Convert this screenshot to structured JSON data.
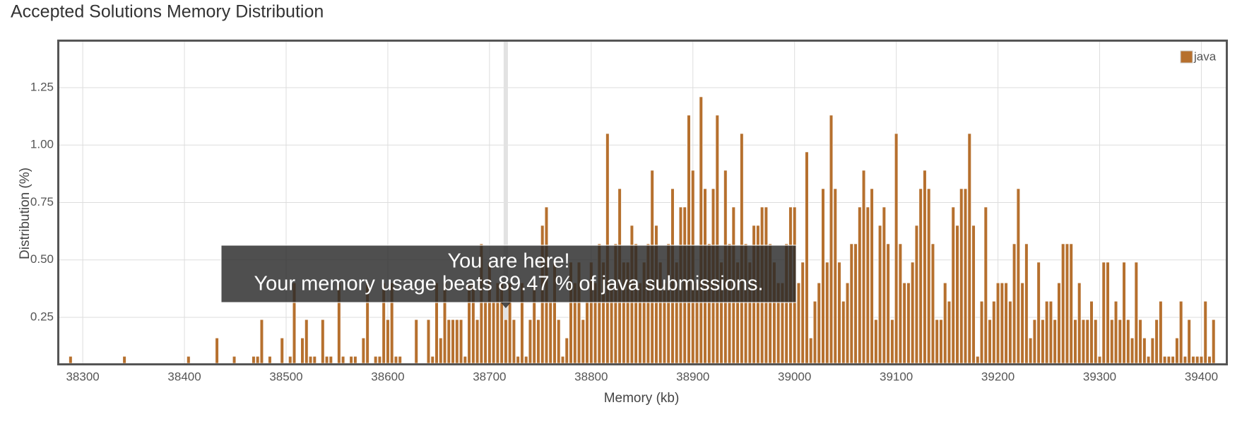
{
  "chart_data": {
    "type": "bar",
    "title": "Accepted Solutions Memory Distribution",
    "x_label": "Memory (kb)",
    "y_label": "Distribution (%)",
    "xlim": [
      38277,
      39424
    ],
    "ylim": [
      0.05,
      1.45
    ],
    "xticks": [
      38300,
      38400,
      38500,
      38600,
      38700,
      38800,
      38900,
      39000,
      39100,
      39200,
      39300,
      39400
    ],
    "yticks": [
      0.25,
      {
        "value": 0.5,
        "label": "0.50"
      },
      0.75,
      {
        "value": 1,
        "label": "1.00"
      },
      1.25
    ],
    "grid": true,
    "legend": "top-right",
    "highlight_x": 38716,
    "annotation": {
      "title": "You are here!",
      "text": "Your memory usage beats 89.47 % of java submissions."
    },
    "x": [
      38288,
      38341,
      38404,
      38432,
      38449,
      38468,
      38472,
      38476,
      38484,
      38496,
      38504,
      38508,
      38516,
      38520,
      38524,
      38528,
      38536,
      38540,
      38544,
      38552,
      38556,
      38564,
      38568,
      38576,
      38580,
      38588,
      38592,
      38596,
      38600,
      38604,
      38608,
      38612,
      38628,
      38640,
      38644,
      38648,
      38652,
      38656,
      38660,
      38664,
      38668,
      38672,
      38676,
      38680,
      38684,
      38688,
      38692,
      38696,
      38700,
      38704,
      38708,
      38712,
      38716,
      38720,
      38724,
      38728,
      38732,
      38736,
      38740,
      38744,
      38748,
      38752,
      38756,
      38760,
      38764,
      38768,
      38772,
      38776,
      38780,
      38784,
      38788,
      38792,
      38796,
      38800,
      38804,
      38808,
      38812,
      38816,
      38820,
      38824,
      38828,
      38832,
      38836,
      38840,
      38844,
      38848,
      38852,
      38856,
      38860,
      38864,
      38868,
      38872,
      38876,
      38880,
      38884,
      38888,
      38892,
      38896,
      38900,
      38904,
      38908,
      38912,
      38916,
      38920,
      38924,
      38928,
      38932,
      38936,
      38940,
      38944,
      38948,
      38952,
      38956,
      38960,
      38964,
      38968,
      38972,
      38976,
      38980,
      38984,
      38988,
      38992,
      38996,
      39000,
      39004,
      39008,
      39012,
      39016,
      39020,
      39024,
      39028,
      39032,
      39036,
      39040,
      39044,
      39048,
      39052,
      39056,
      39060,
      39064,
      39068,
      39072,
      39076,
      39080,
      39084,
      39088,
      39092,
      39096,
      39100,
      39104,
      39108,
      39112,
      39116,
      39120,
      39124,
      39128,
      39132,
      39136,
      39140,
      39144,
      39148,
      39152,
      39156,
      39160,
      39164,
      39168,
      39172,
      39176,
      39180,
      39184,
      39188,
      39192,
      39196,
      39200,
      39204,
      39208,
      39212,
      39216,
      39220,
      39224,
      39228,
      39232,
      39236,
      39240,
      39244,
      39248,
      39252,
      39256,
      39260,
      39264,
      39268,
      39272,
      39276,
      39280,
      39284,
      39288,
      39292,
      39296,
      39300,
      39304,
      39308,
      39312,
      39316,
      39320,
      39324,
      39328,
      39332,
      39336,
      39340,
      39344,
      39348,
      39352,
      39356,
      39360,
      39364,
      39368,
      39372,
      39376,
      39380,
      39384,
      39388,
      39392,
      39396,
      39400,
      39404,
      39408,
      39412
    ],
    "series": [
      {
        "name": "java",
        "color": "#b6702e",
        "values": [
          0.08,
          0.08,
          0.08,
          0.16,
          0.08,
          0.08,
          0.08,
          0.24,
          0.08,
          0.16,
          0.08,
          0.4,
          0.16,
          0.24,
          0.08,
          0.08,
          0.24,
          0.08,
          0.08,
          0.4,
          0.08,
          0.08,
          0.08,
          0.16,
          0.4,
          0.08,
          0.08,
          0.4,
          0.24,
          0.4,
          0.08,
          0.08,
          0.24,
          0.24,
          0.08,
          0.4,
          0.16,
          0.4,
          0.24,
          0.24,
          0.24,
          0.24,
          0.08,
          0.4,
          0.4,
          0.24,
          0.57,
          0.32,
          0.49,
          0.32,
          0.4,
          0.4,
          0.24,
          0.4,
          0.24,
          0.08,
          0.4,
          0.08,
          0.24,
          0.4,
          0.24,
          0.65,
          0.73,
          0.32,
          0.49,
          0.24,
          0.08,
          0.16,
          0.49,
          0.4,
          0.49,
          0.24,
          0.32,
          0.49,
          0.4,
          0.57,
          0.49,
          1.05,
          0.4,
          0.57,
          0.81,
          0.49,
          0.49,
          0.65,
          0.57,
          0.4,
          0.49,
          0.57,
          0.89,
          0.65,
          0.49,
          0.4,
          0.57,
          0.81,
          0.49,
          0.73,
          0.73,
          1.13,
          0.89,
          0.4,
          1.21,
          0.81,
          0.57,
          0.81,
          1.13,
          0.49,
          0.89,
          0.57,
          0.73,
          0.49,
          1.05,
          0.57,
          0.49,
          0.65,
          0.65,
          0.73,
          0.73,
          0.57,
          0.49,
          0.4,
          0.4,
          0.57,
          0.73,
          0.73,
          0.4,
          0.49,
          0.97,
          0.16,
          0.32,
          0.4,
          0.81,
          0.49,
          1.13,
          0.81,
          0.49,
          0.32,
          0.4,
          0.57,
          0.57,
          0.73,
          0.89,
          0.73,
          0.81,
          0.24,
          0.65,
          0.73,
          0.57,
          0.24,
          1.05,
          0.57,
          0.4,
          0.4,
          0.49,
          0.65,
          0.81,
          0.89,
          0.81,
          0.57,
          0.24,
          0.24,
          0.4,
          0.32,
          0.73,
          0.65,
          0.81,
          0.81,
          1.05,
          0.65,
          0.08,
          0.32,
          0.73,
          0.24,
          0.32,
          0.4,
          0.4,
          0.4,
          0.32,
          0.57,
          0.81,
          0.4,
          0.57,
          0.16,
          0.24,
          0.49,
          0.24,
          0.32,
          0.32,
          0.24,
          0.4,
          0.57,
          0.57,
          0.57,
          0.24,
          0.4,
          0.24,
          0.24,
          0.32,
          0.24,
          0.08,
          0.49,
          0.49,
          0.24,
          0.32,
          0.24,
          0.49,
          0.24,
          0.16,
          0.49,
          0.24,
          0.16,
          0.08,
          0.16,
          0.24,
          0.32,
          0.08,
          0.08,
          0.08,
          0.16,
          0.32,
          0.08,
          0.24,
          0.08,
          0.08,
          0.08,
          0.32,
          0.08,
          0.24
        ]
      }
    ]
  }
}
